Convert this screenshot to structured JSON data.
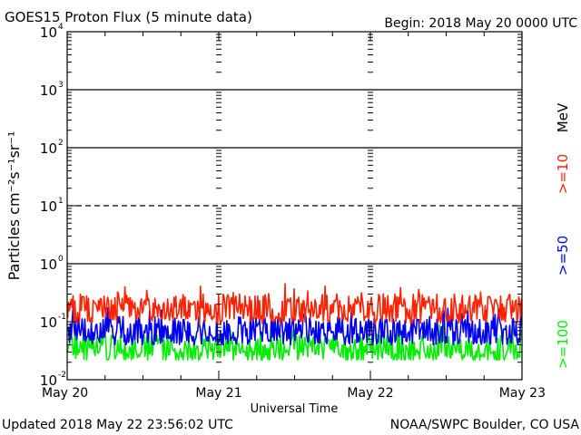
{
  "header": {
    "title": "GOES15 Proton Flux (5 minute data)",
    "begin": "Begin: 2018 May 20 0000 UTC"
  },
  "footer": {
    "updated": "Updated 2018 May 22 23:56:02 UTC",
    "source": "NOAA/SWPC Boulder, CO USA"
  },
  "legend": {
    "unit": "MeV",
    "items": [
      {
        "label": ">=10",
        "color": "#ff2200"
      },
      {
        "label": ">=50",
        "color": "#0000ee"
      },
      {
        "label": ">=100",
        "color": "#00ee00"
      }
    ]
  },
  "chart_data": {
    "type": "line",
    "xlabel": "Universal Time",
    "ylabel": "Particles cm⁻²s⁻¹sr⁻¹",
    "yscale": "log",
    "ylim": [
      0.01,
      10000
    ],
    "xlim": [
      "2018-05-20 00:00",
      "2018-05-23 00:00"
    ],
    "x_tick_labels": [
      "May 20",
      "May 21",
      "May 22",
      "May 23"
    ],
    "y_tick_labels": [
      {
        "base": "10",
        "exp": "-2"
      },
      {
        "base": "10",
        "exp": "-1"
      },
      {
        "base": "10",
        "exp": "0"
      },
      {
        "base": "10",
        "exp": "1"
      },
      {
        "base": "10",
        "exp": "2"
      },
      {
        "base": "10",
        "exp": "3"
      },
      {
        "base": "10",
        "exp": "4"
      }
    ],
    "threshold_lines": [
      {
        "value": 1,
        "style": "solid"
      },
      {
        "value": 10,
        "style": "dashed"
      },
      {
        "value": 100,
        "style": "solid"
      },
      {
        "value": 1000,
        "style": "solid"
      }
    ],
    "series": [
      {
        "name": ">=10 MeV",
        "color": "#ff2200",
        "typical": 0.17,
        "min": 0.09,
        "max": 0.5
      },
      {
        "name": ">=50 MeV",
        "color": "#0000ee",
        "typical": 0.07,
        "min": 0.04,
        "max": 0.18
      },
      {
        "name": ">=100 MeV",
        "color": "#00ee00",
        "typical": 0.035,
        "min": 0.022,
        "max": 0.09
      }
    ]
  }
}
